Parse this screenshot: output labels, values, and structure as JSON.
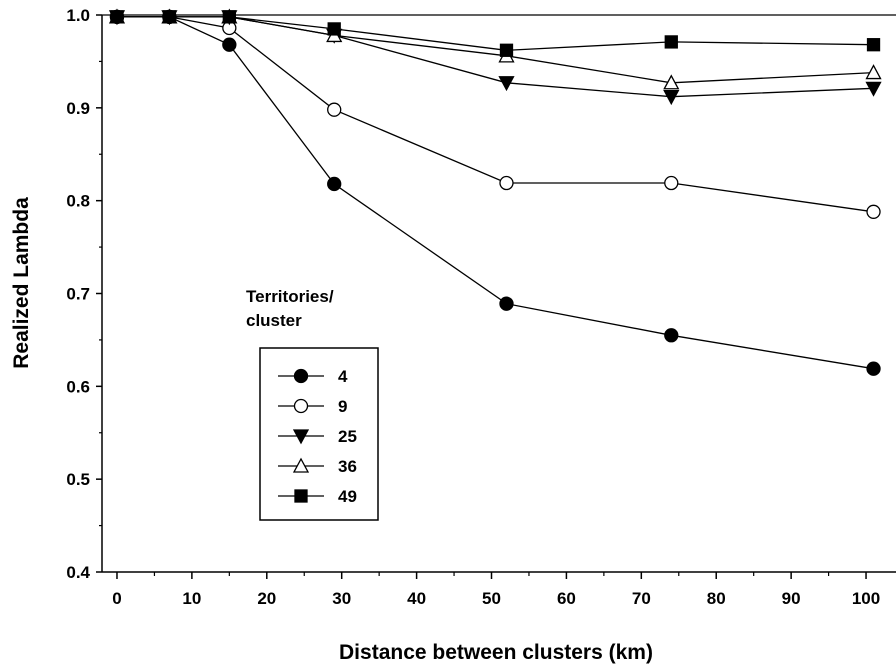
{
  "chart_data": {
    "type": "line",
    "title": "",
    "xlabel": "Distance between clusters (km)",
    "ylabel": "Realized Lambda",
    "xlim": [
      -2,
      104
    ],
    "ylim": [
      0.4,
      1.0
    ],
    "xticks": [
      0,
      10,
      20,
      30,
      40,
      50,
      60,
      70,
      80,
      90,
      100
    ],
    "yticks": [
      0.4,
      0.5,
      0.6,
      0.7,
      0.8,
      0.9,
      1.0
    ],
    "ytick_labels": [
      "0.4",
      "0.5",
      "0.6",
      "0.7",
      "0.8",
      "0.9",
      "1.0"
    ],
    "reference_line": 1.0,
    "grid": false,
    "legend_title": "Territories/\ncluster",
    "legend_title_lines": [
      "Territories/",
      "cluster"
    ],
    "legend_position": "center-left",
    "x": [
      0,
      7,
      15,
      29,
      52,
      74,
      101
    ],
    "series": [
      {
        "name": "4",
        "marker": "filled-circle",
        "values": [
          0.998,
          0.998,
          0.968,
          0.818,
          0.689,
          0.655,
          0.619
        ]
      },
      {
        "name": "9",
        "marker": "open-circle",
        "values": [
          0.998,
          0.998,
          0.986,
          0.898,
          0.819,
          0.819,
          0.788
        ]
      },
      {
        "name": "25",
        "marker": "filled-triangle-down",
        "values": [
          0.998,
          0.998,
          0.998,
          0.978,
          0.927,
          0.912,
          0.921
        ]
      },
      {
        "name": "36",
        "marker": "open-triangle-up",
        "values": [
          0.998,
          0.998,
          0.998,
          0.978,
          0.956,
          0.927,
          0.938
        ]
      },
      {
        "name": "49",
        "marker": "filled-square",
        "values": [
          0.998,
          0.998,
          0.998,
          0.985,
          0.962,
          0.971,
          0.968
        ]
      }
    ],
    "colors": {
      "line": "#000000",
      "open_fill": "#ffffff",
      "filled": "#000000"
    }
  }
}
